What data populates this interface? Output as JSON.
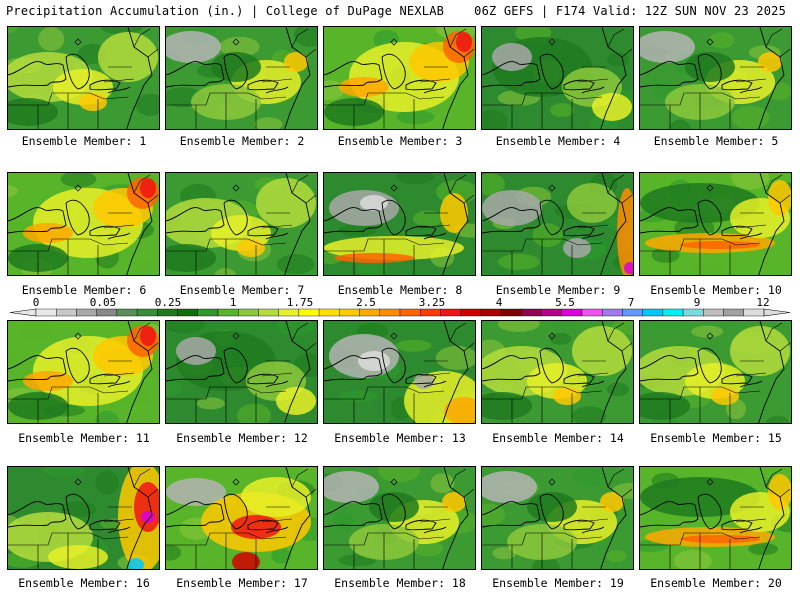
{
  "header": {
    "left_title": "Precipitation Accumulation (in.) | College of DuPage NEXLAB",
    "right_title": "06Z GEFS | F174 Valid: 12Z SUN NOV 23 2025"
  },
  "members": [
    {
      "label": "Ensemble Member: 1",
      "scheme": "wet"
    },
    {
      "label": "Ensemble Member: 2",
      "scheme": "gray"
    },
    {
      "label": "Ensemble Member: 3",
      "scheme": "wetne"
    },
    {
      "label": "Ensemble Member: 4",
      "scheme": "dry"
    },
    {
      "label": "Ensemble Member: 5",
      "scheme": "gray"
    },
    {
      "label": "Ensemble Member: 6",
      "scheme": "wetne"
    },
    {
      "label": "Ensemble Member: 7",
      "scheme": "wet"
    },
    {
      "label": "Ensemble Member: 8",
      "scheme": "grayband"
    },
    {
      "label": "Ensemble Member: 9",
      "scheme": "dryeast"
    },
    {
      "label": "Ensemble Member: 10",
      "scheme": "band"
    },
    {
      "label": "Ensemble Member: 11",
      "scheme": "wetne"
    },
    {
      "label": "Ensemble Member: 12",
      "scheme": "dry"
    },
    {
      "label": "Ensemble Member: 13",
      "scheme": "graycoast"
    },
    {
      "label": "Ensemble Member: 14",
      "scheme": "wet"
    },
    {
      "label": "Ensemble Member: 15",
      "scheme": "wet"
    },
    {
      "label": "Ensemble Member: 16",
      "scheme": "coastheavy"
    },
    {
      "label": "Ensemble Member: 17",
      "scheme": "wetgray"
    },
    {
      "label": "Ensemble Member: 18",
      "scheme": "gray"
    },
    {
      "label": "Ensemble Member: 19",
      "scheme": "gray"
    },
    {
      "label": "Ensemble Member: 20",
      "scheme": "band"
    }
  ],
  "colorbar": {
    "labels": [
      "0",
      "0.05",
      "0.25",
      "1",
      "1.75",
      "2.5",
      "3.25",
      "4",
      "5.5",
      "7",
      "9",
      "12"
    ],
    "colors": [
      "#e8e8e8",
      "#c8c8c8",
      "#a8a8a8",
      "#888888",
      "#5a8f5a",
      "#3c8c3c",
      "#1e7a1e",
      "#0f6e0f",
      "#2e9a2e",
      "#58b428",
      "#8cc83c",
      "#b4dc3c",
      "#e6f028",
      "#ffff00",
      "#ffe000",
      "#ffc800",
      "#ffa800",
      "#ff8c00",
      "#ff6400",
      "#ff3c00",
      "#f01414",
      "#d20000",
      "#aa0000",
      "#820000",
      "#960050",
      "#b4008c",
      "#dc00dc",
      "#f050f0",
      "#a078f0",
      "#6496ff",
      "#00c8ff",
      "#00f0f0",
      "#78dcdc",
      "#bebebe",
      "#a0a0a0",
      "#dcdcdc"
    ]
  }
}
